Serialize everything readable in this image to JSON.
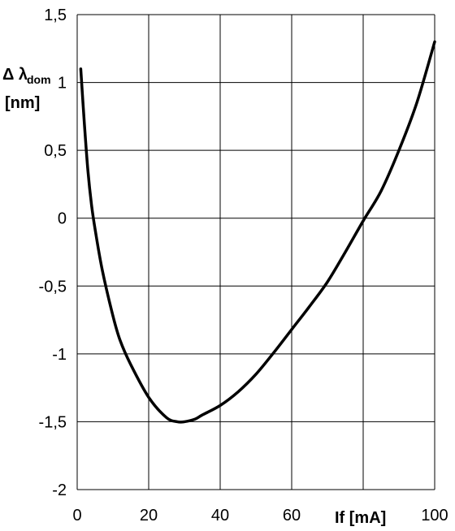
{
  "chart_data": {
    "type": "line",
    "title": "",
    "ylabel": {
      "symbol": "Δ λ",
      "subscript": "dom",
      "unit": "[nm]"
    },
    "xlabel": "If [mA]",
    "xlim": [
      0,
      100
    ],
    "ylim": [
      -2,
      1.5
    ],
    "x_ticks": [
      0,
      20,
      40,
      60,
      80,
      100
    ],
    "y_ticks": [
      1.5,
      1,
      0.5,
      0,
      -0.5,
      -1,
      -1.5,
      -2
    ],
    "x_tick_labels": [
      "0",
      "20",
      "40",
      "60",
      "80",
      "100"
    ],
    "y_tick_labels": [
      "1,5",
      "1",
      "0,5",
      "0",
      "-0,5",
      "-1",
      "-1,5",
      "-2"
    ],
    "grid": true,
    "series": [
      {
        "x": [
          1,
          2,
          3,
          4,
          5,
          7,
          10,
          12,
          15,
          20,
          25,
          28,
          30,
          33,
          35,
          40,
          45,
          50,
          55,
          60,
          65,
          70,
          75,
          80,
          85,
          90,
          95,
          100
        ],
        "y": [
          1.1,
          0.7,
          0.35,
          0.1,
          -0.08,
          -0.38,
          -0.72,
          -0.9,
          -1.08,
          -1.32,
          -1.47,
          -1.5,
          -1.5,
          -1.48,
          -1.45,
          -1.38,
          -1.28,
          -1.15,
          -0.99,
          -0.82,
          -0.65,
          -0.47,
          -0.25,
          -0.02,
          0.2,
          0.5,
          0.85,
          1.3
        ]
      }
    ],
    "colors": {
      "line": "#000000",
      "grid": "#000000",
      "background": "#ffffff"
    }
  }
}
